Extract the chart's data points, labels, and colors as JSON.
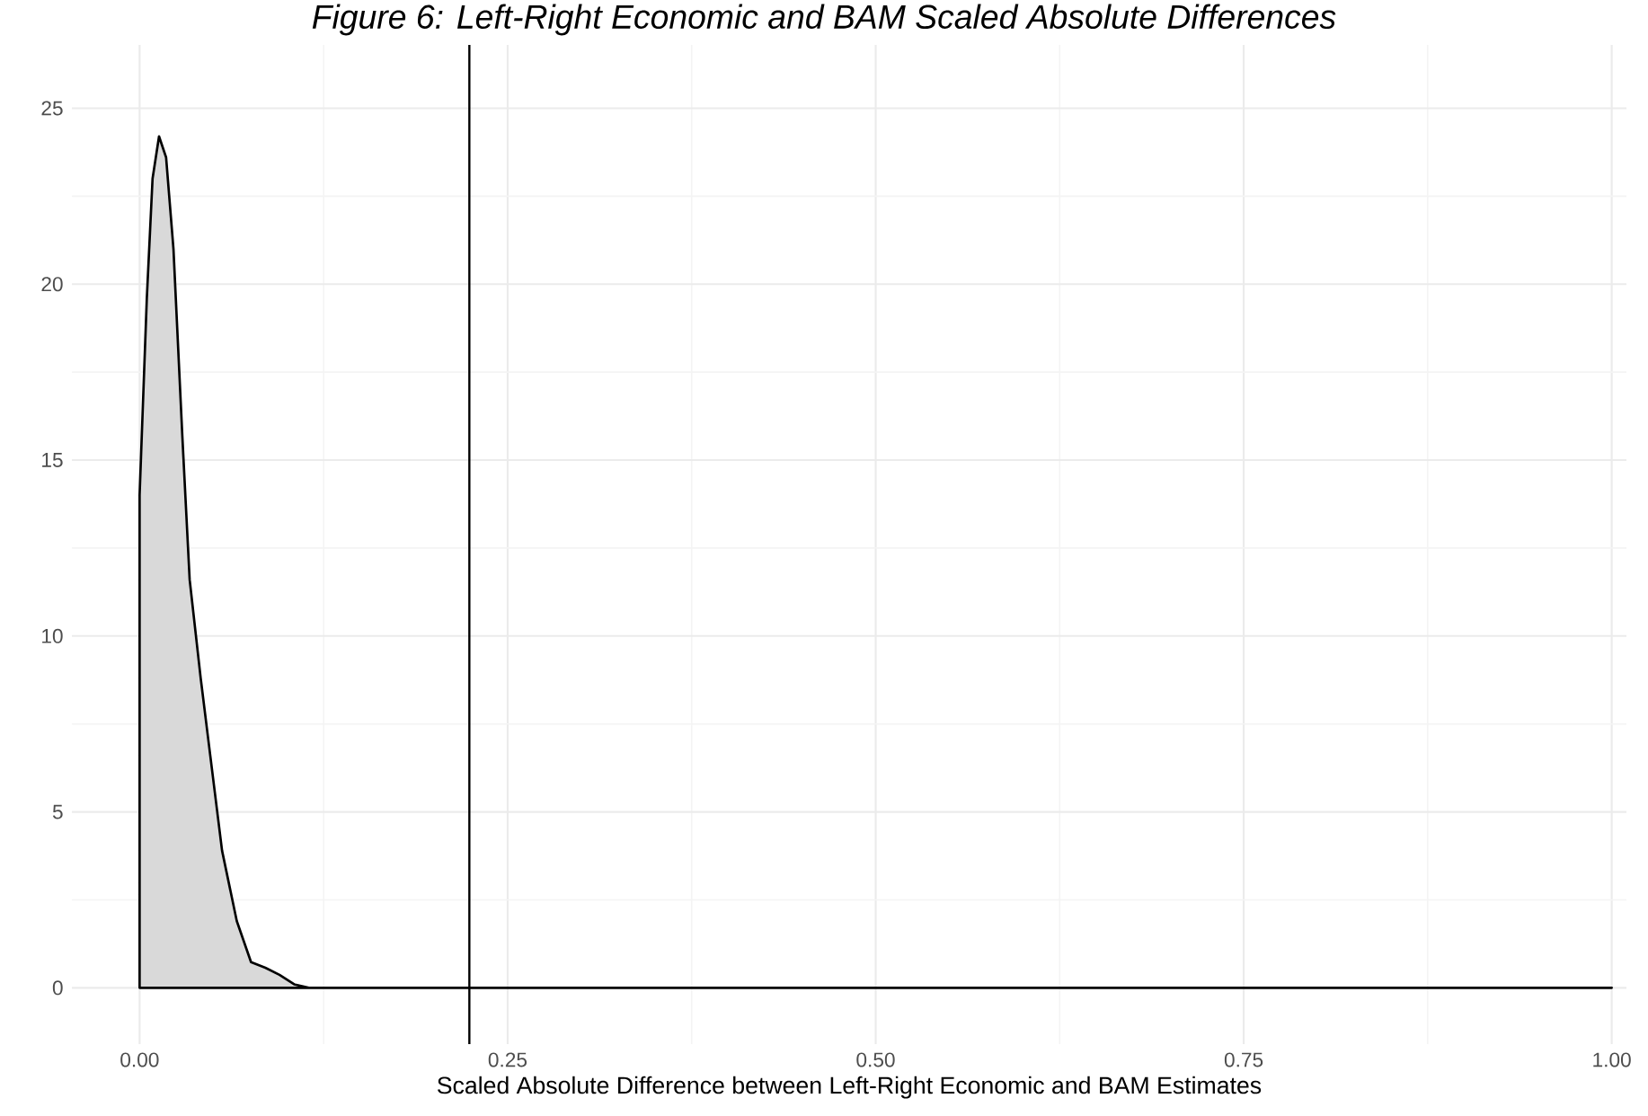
{
  "chart_data": {
    "type": "area",
    "title": "Figure 6: Left-Right Economic and BAM Scaled Absolute Differences",
    "xlabel": "Scaled Absolute Difference between Left-Right Economic and BAM Estimates",
    "x": [
      0,
      0.0049,
      0.0088,
      0.0132,
      0.018,
      0.023,
      0.029,
      0.034,
      0.0415,
      0.048,
      0.056,
      0.066,
      0.0757,
      0.0854,
      0.095,
      0.105,
      0.115,
      0.149,
      1.0
    ],
    "series": [
      {
        "color": "#d9d9d9",
        "values": [
          14.0,
          19.6,
          23.0,
          24.2,
          23.6,
          21.0,
          15.7,
          11.6,
          8.8,
          6.6,
          3.9,
          1.9,
          0.73,
          0.57,
          0.37,
          0.1,
          0,
          0,
          0
        ]
      }
    ],
    "xlim": [
      -0.046,
      1.01
    ],
    "ylim": [
      -1.6,
      26.8
    ],
    "xticks": [
      {
        "value": 0,
        "label": "0.00"
      },
      {
        "value": 0.25,
        "label": "0.25"
      },
      {
        "value": 0.5,
        "label": "0.50"
      },
      {
        "value": 0.75,
        "label": "0.75"
      },
      {
        "value": 1,
        "label": "1.00"
      }
    ],
    "yticks": [
      0,
      5,
      10,
      15,
      20,
      25
    ],
    "grid": true,
    "ref_lines": [
      {
        "axis": "x",
        "value": 0.224,
        "color": "#000000"
      }
    ]
  }
}
